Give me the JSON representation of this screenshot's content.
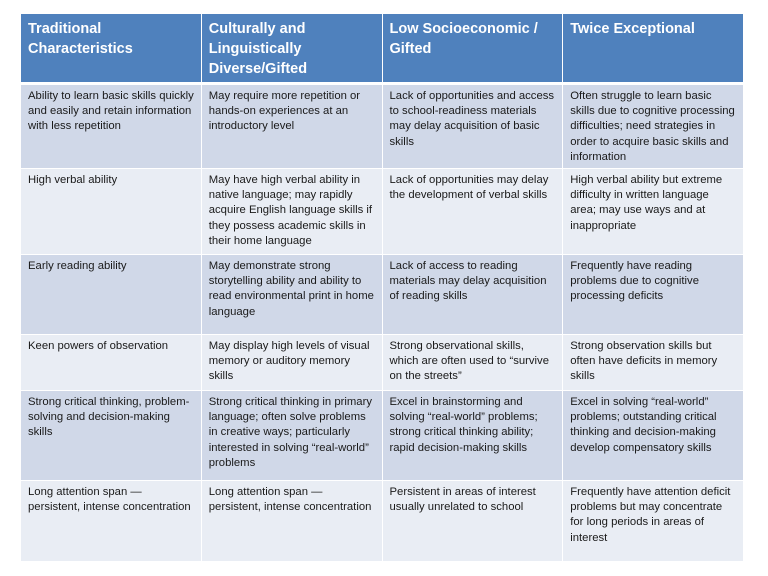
{
  "table": {
    "headers": [
      "Traditional Characteristics",
      "Culturally and Linguistically Diverse/Gifted",
      "Low Socioeconomic / Gifted",
      "Twice Exceptional"
    ],
    "rows": [
      [
        "Ability to learn basic skills quickly and easily and retain information with less repetition",
        "May require more repetition or hands-on experiences at an introductory level",
        "Lack of opportunities and access to school-readiness materials may delay acquisition of basic skills",
        "Often struggle to learn basic skills due to cognitive processing difficulties; need strategies in order to acquire basic skills and information"
      ],
      [
        "High verbal ability",
        "May have high verbal ability in native language; may rapidly acquire English language skills if they possess academic skills in their home language",
        "Lack of opportunities may delay the development of verbal skills",
        "High verbal ability but extreme difficulty in written language area; may use ways and at inappropriate"
      ],
      [
        "Early reading ability",
        "May demonstrate strong storytelling ability and ability to read environmental print in home language",
        "Lack of access to reading materials may delay acquisition of reading skills",
        "Frequently have reading problems due to cognitive processing deficits"
      ],
      [
        "Keen powers of observation",
        "May display high levels of visual memory or auditory memory skills",
        "Strong observational skills, which are often used to “survive on the streets”",
        "Strong observation skills but often have deficits in memory skills"
      ],
      [
        "Strong critical thinking, problem-solving and decision-making skills",
        "Strong critical thinking in primary language; often solve problems in creative ways; particularly interested in solving “real-world” problems",
        "Excel in brainstorming and solving “real-world” problems; strong critical thinking ability; rapid decision-making skills",
        "Excel in solving “real-world” problems; outstanding critical thinking and decision-making develop compensatory skills"
      ],
      [
        "Long attention span — persistent, intense concentration",
        "Long attention span — persistent, intense concentration",
        "Persistent in areas of interest usually unrelated to school",
        "Frequently have attention deficit problems but may concentrate for long periods in areas of interest"
      ]
    ]
  },
  "colors": {
    "header_bg": "#4f81bd",
    "header_text": "#ffffff",
    "row_dark_bg": "#d0d8e8",
    "row_light_bg": "#e9edf4",
    "body_text": "#1a1a1a"
  }
}
